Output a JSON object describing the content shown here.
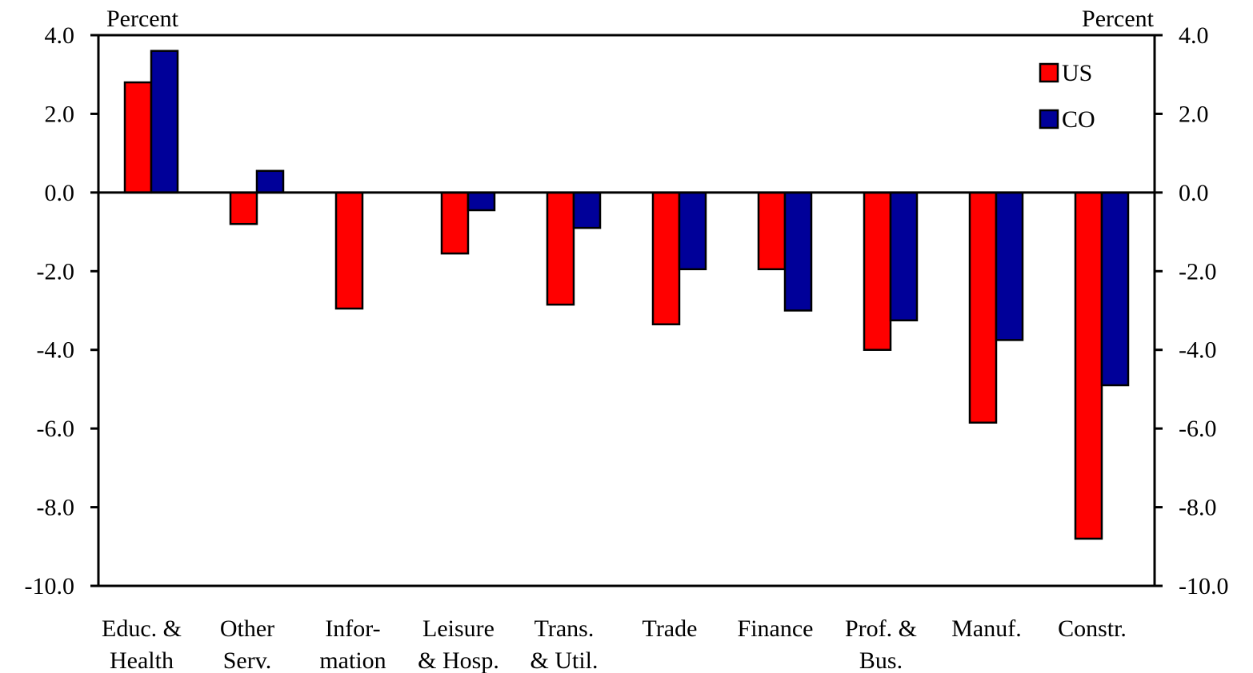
{
  "chart_data": {
    "type": "bar",
    "left_axis_label": "Percent",
    "right_axis_label": "Percent",
    "ylim": [
      -10.0,
      4.0
    ],
    "yticks": [
      "4.0",
      "2.0",
      "0.0",
      "-2.0",
      "-4.0",
      "-6.0",
      "-8.0",
      "-10.0"
    ],
    "ytick_values": [
      4,
      2,
      0,
      -2,
      -4,
      -6,
      -8,
      -10
    ],
    "categories": [
      [
        "Educ. &",
        "Health"
      ],
      [
        "Other",
        "Serv."
      ],
      [
        "Infor-",
        "mation"
      ],
      [
        "Leisure",
        "& Hosp."
      ],
      [
        "Trans.",
        "& Util."
      ],
      [
        "Trade"
      ],
      [
        "Finance"
      ],
      [
        "Prof. &",
        "Bus."
      ],
      [
        "Manuf."
      ],
      [
        "Constr."
      ]
    ],
    "series": [
      {
        "name": "US",
        "color": "#ff0000",
        "values": [
          2.8,
          -0.8,
          -2.95,
          -1.55,
          -2.85,
          -3.35,
          -1.95,
          -4.0,
          -5.85,
          -8.8
        ]
      },
      {
        "name": "CO",
        "color": "#000099",
        "values": [
          3.6,
          0.55,
          0.0,
          -0.45,
          -0.9,
          -1.95,
          -3.0,
          -3.25,
          -3.75,
          -4.9
        ]
      }
    ],
    "legend_position": "top-right",
    "grid": false
  }
}
